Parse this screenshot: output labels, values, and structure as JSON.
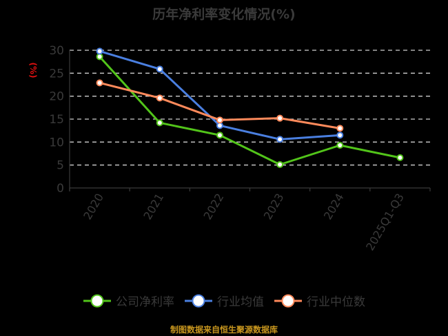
{
  "title": "历年净利率变化情况(%)",
  "source": "制图数据来自恒生聚源数据库",
  "legend": [
    {
      "label": "公司净利率",
      "color": "#52c41a"
    },
    {
      "label": "行业均值",
      "color": "#4a7fe0"
    },
    {
      "label": "行业中位数",
      "color": "#ff8a5b"
    }
  ],
  "chart_data": {
    "type": "line",
    "title": "历年净利率变化情况(%)",
    "xlabel": "",
    "ylabel": "(%)",
    "ylim": [
      0,
      30
    ],
    "yticks": [
      0,
      5,
      10,
      15,
      20,
      25,
      30
    ],
    "grid": true,
    "legend_position": "bottom",
    "categories": [
      "2020",
      "2021",
      "2022",
      "2023",
      "2024",
      "2025Q1-Q3"
    ],
    "series": [
      {
        "name": "公司净利率",
        "color": "#52c41a",
        "values": [
          28.6,
          14.2,
          11.5,
          5.1,
          9.3,
          6.6
        ]
      },
      {
        "name": "行业均值",
        "color": "#4a7fe0",
        "values": [
          29.8,
          25.9,
          13.6,
          10.6,
          11.5,
          null
        ]
      },
      {
        "name": "行业中位数",
        "color": "#ff8a5b",
        "values": [
          22.9,
          19.6,
          14.8,
          15.2,
          13.0,
          null
        ]
      }
    ]
  }
}
